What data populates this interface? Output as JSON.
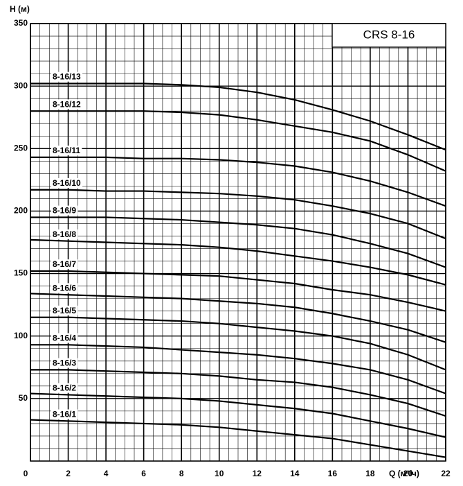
{
  "chart_data": {
    "type": "line",
    "title": "CRS 8-16",
    "xlabel": "Q (м³/ч)",
    "ylabel": "H (м)",
    "x": [
      0,
      2,
      4,
      6,
      8,
      10,
      12,
      14,
      16,
      18,
      20,
      22
    ],
    "xlim": [
      0,
      22
    ],
    "xticks": [
      0,
      2,
      4,
      6,
      8,
      10,
      12,
      14,
      16,
      18,
      20,
      22
    ],
    "ylim": [
      0,
      350
    ],
    "yticks": [
      50,
      100,
      150,
      200,
      250,
      300,
      350
    ],
    "grid": true,
    "minor_grid": {
      "x": 4,
      "y": 5
    },
    "series": [
      {
        "name": "8-16/13",
        "color": "#000000",
        "values": [
          302,
          302,
          302,
          302,
          301,
          299,
          295,
          289,
          281,
          272,
          261,
          249
        ]
      },
      {
        "name": "8-16/12",
        "color": "#000000",
        "values": [
          280,
          280,
          280,
          280,
          279,
          277,
          273,
          268,
          263,
          256,
          245,
          232
        ]
      },
      {
        "name": "8-16/11",
        "color": "#000000",
        "values": [
          243,
          243,
          243,
          242,
          242,
          241,
          239,
          236,
          231,
          224,
          215,
          204
        ]
      },
      {
        "name": "8-16/10",
        "color": "#000000",
        "values": [
          217,
          217,
          216,
          216,
          215,
          214,
          212,
          209,
          204,
          198,
          190,
          178
        ]
      },
      {
        "name": "8-16/9",
        "color": "#000000",
        "values": [
          195,
          195,
          195,
          194,
          193,
          191,
          189,
          186,
          181,
          174,
          166,
          155
        ]
      },
      {
        "name": "8-16/8",
        "color": "#000000",
        "values": [
          177,
          176,
          175,
          174,
          173,
          171,
          168,
          164,
          160,
          155,
          149,
          141
        ]
      },
      {
        "name": "8-16/7",
        "color": "#000000",
        "values": [
          152,
          152,
          151,
          150,
          149,
          148,
          145,
          142,
          137,
          133,
          127,
          120
        ]
      },
      {
        "name": "8-16/6",
        "color": "#000000",
        "values": [
          134,
          133,
          132,
          131,
          130,
          128,
          126,
          123,
          118,
          112,
          105,
          95
        ]
      },
      {
        "name": "8-16/5",
        "color": "#000000",
        "values": [
          115,
          115,
          114,
          113,
          112,
          110,
          107,
          104,
          100,
          94,
          85,
          73
        ]
      },
      {
        "name": "8-16/4",
        "color": "#000000",
        "values": [
          93,
          93,
          92,
          91,
          89,
          87,
          85,
          82,
          78,
          73,
          65,
          54
        ]
      },
      {
        "name": "8-16/3",
        "color": "#000000",
        "values": [
          73,
          73,
          72,
          71,
          70,
          68,
          65,
          63,
          59,
          53,
          46,
          36
        ]
      },
      {
        "name": "8-16/2",
        "color": "#000000",
        "values": [
          54,
          53,
          52,
          51,
          50,
          48,
          45,
          42,
          38,
          32,
          26,
          19
        ]
      },
      {
        "name": "8-16/1",
        "color": "#000000",
        "values": [
          33,
          32,
          31,
          30,
          29,
          27,
          24,
          21,
          18,
          13,
          8,
          3
        ]
      }
    ]
  }
}
